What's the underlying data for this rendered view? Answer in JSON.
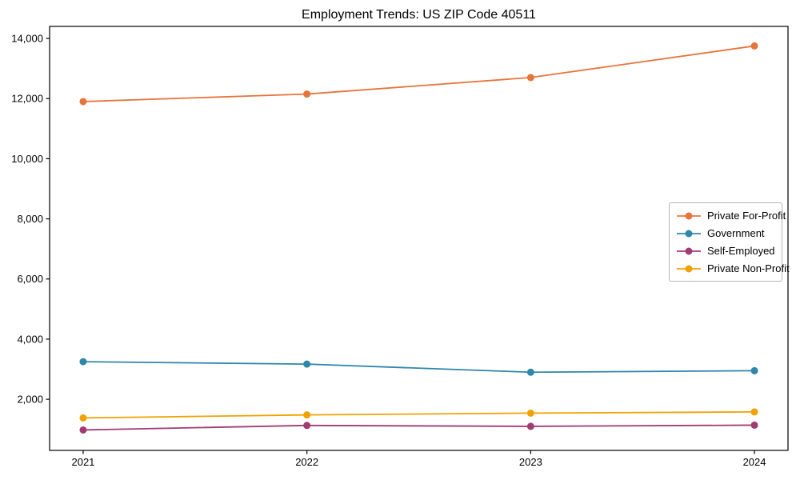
{
  "chart_data": {
    "type": "line",
    "title": "Employment Trends: US ZIP Code 40511",
    "xlabel": "",
    "ylabel": "",
    "x": [
      2021,
      2022,
      2023,
      2024
    ],
    "x_tick_labels": [
      "2021",
      "2022",
      "2023",
      "2024"
    ],
    "y_ticks": [
      2000,
      4000,
      6000,
      8000,
      10000,
      12000,
      14000
    ],
    "y_tick_labels": [
      "2,000",
      "4,000",
      "6,000",
      "8,000",
      "10,000",
      "12,000",
      "14,000"
    ],
    "xlim": [
      2020.85,
      2024.15
    ],
    "ylim": [
      300,
      14400
    ],
    "grid": false,
    "legend_position": "center-right",
    "background_color": "#ffffff",
    "axis_color": "#000000",
    "series": [
      {
        "name": "Private For-Profit",
        "color": "#E8743B",
        "values": [
          11900,
          12150,
          12700,
          13750
        ]
      },
      {
        "name": "Government",
        "color": "#2E86AB",
        "values": [
          3250,
          3170,
          2900,
          2950
        ]
      },
      {
        "name": "Self-Employed",
        "color": "#A23B72",
        "values": [
          980,
          1130,
          1100,
          1140
        ]
      },
      {
        "name": "Private Non-Profit",
        "color": "#F0A202",
        "values": [
          1380,
          1480,
          1540,
          1580
        ]
      }
    ]
  }
}
